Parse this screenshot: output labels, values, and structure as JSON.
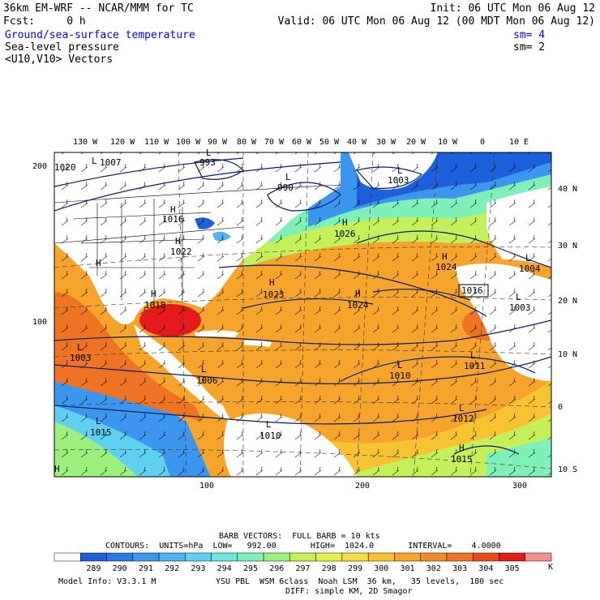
{
  "header": {
    "line1_left": "36km EM-WRF -- NCAR/MMM for TC",
    "line1_right": "Init: 06 UTC Mon 06 Aug 12",
    "line2_left": "Fcst:     0 h",
    "line2_right": "Valid: 06 UTC Mon 06 Aug 12 (00 MDT Mon 06 Aug 12)",
    "field1": "Ground/sea-surface temperature",
    "field1_sm": "sm= 4",
    "field2": "Sea-level pressure",
    "field2_sm": "sm= 2",
    "field3": "<U10,V10> Vectors"
  },
  "map": {
    "top_lon_labels": [
      "130 W",
      "120 W",
      "110 W",
      "100 W",
      "90 W",
      "80 W",
      "70 W",
      "60 W",
      "50 W",
      "40 W",
      "30 W",
      "20 W",
      "10 W",
      "0",
      "10 E"
    ],
    "right_lat_labels": [
      "40 N",
      "30 N",
      "20 N",
      "10 N",
      "0",
      "10 S"
    ],
    "left_grid_labels": [
      "200",
      "100"
    ],
    "bottom_grid_labels": [
      "100",
      "200",
      "300"
    ],
    "pressure_labels": [
      "1007",
      "993",
      "990",
      "1003",
      "1016",
      "1026",
      "1022",
      "1024",
      "1004",
      "1023",
      "1024",
      "1003",
      "1018",
      "1003",
      "1010",
      "1011",
      "1006",
      "1012",
      "1015",
      "1010",
      "1015",
      "1020"
    ],
    "high_low_marks": [
      "L",
      "L",
      "L",
      "L",
      "H",
      "H",
      "H",
      "H",
      "H",
      "H",
      "H",
      "L",
      "L",
      "L",
      "L",
      "L",
      "L",
      "H",
      "L",
      "H",
      "L",
      "H",
      "L"
    ],
    "box_label": "1016",
    "colors": {
      "land": "#ffffff",
      "deep_cold": "#1f6fe6",
      "warm": "#f28c28",
      "hot": "#e41a1c"
    }
  },
  "legend": {
    "barb_title": "BARB VECTORS:  FULL BARB = 10 kts",
    "contours_line": "CONTOURS:  UNITS=hPa  LOW=   992.00       HIGH=  1024.0       INTERVAL=    4.0000",
    "unit": "K",
    "bins": [
      {
        "label": "289",
        "color": "#1e5fdc"
      },
      {
        "label": "290",
        "color": "#2a78e6"
      },
      {
        "label": "291",
        "color": "#3c96ee"
      },
      {
        "label": "292",
        "color": "#4fb4f2"
      },
      {
        "label": "293",
        "color": "#5fd0f0"
      },
      {
        "label": "294",
        "color": "#6ee6de"
      },
      {
        "label": "295",
        "color": "#7ef0b8"
      },
      {
        "label": "296",
        "color": "#9cf07e"
      },
      {
        "label": "297",
        "color": "#c4f05a"
      },
      {
        "label": "298",
        "color": "#e6ee4c"
      },
      {
        "label": "299",
        "color": "#f6dc3e"
      },
      {
        "label": "300",
        "color": "#f8c232"
      },
      {
        "label": "301",
        "color": "#f6a42c"
      },
      {
        "label": "302",
        "color": "#f28c28"
      },
      {
        "label": "303",
        "color": "#ee7424"
      },
      {
        "label": "304",
        "color": "#e84a1e"
      },
      {
        "label": "305",
        "color": "#e41a1c"
      }
    ],
    "top_color": "#f49090",
    "model_info": "Model Info: V3.3.1 M",
    "model_info_right": "YSU PBL  WSM 6class  Noah LSM  36 km,   35 levels,  180 sec",
    "model_info_line2": "DIFF: simple KM, 2D Smagor"
  }
}
